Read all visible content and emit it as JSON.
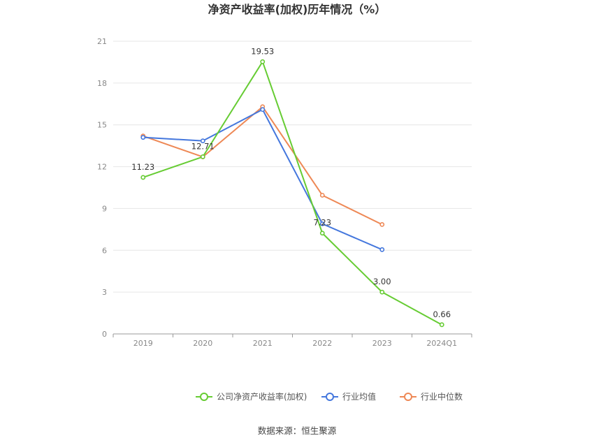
{
  "chart_data": {
    "type": "line",
    "title": "净资产收益率(加权)历年情况（%）",
    "categories": [
      "2019",
      "2020",
      "2021",
      "2022",
      "2023",
      "2024Q1"
    ],
    "ylim": [
      0,
      21
    ],
    "yticks": [
      0,
      3,
      6,
      9,
      12,
      15,
      18,
      21
    ],
    "grid": true,
    "legend_position": "bottom",
    "series": [
      {
        "name": "公司净资产收益率(加权)",
        "color": "#66cc33",
        "values": [
          11.23,
          12.71,
          19.53,
          7.23,
          3.0,
          0.66
        ],
        "labels": [
          "11.23",
          "12.71",
          "19.53",
          "7.23",
          "3.00",
          "0.66"
        ]
      },
      {
        "name": "行业均值",
        "color": "#4477dd",
        "values": [
          14.1,
          13.85,
          16.1,
          7.9,
          6.05,
          null
        ]
      },
      {
        "name": "行业中位数",
        "color": "#ee8855",
        "values": [
          14.2,
          12.7,
          16.3,
          9.95,
          7.85,
          null
        ]
      }
    ],
    "source": "数据来源：恒生聚源"
  }
}
